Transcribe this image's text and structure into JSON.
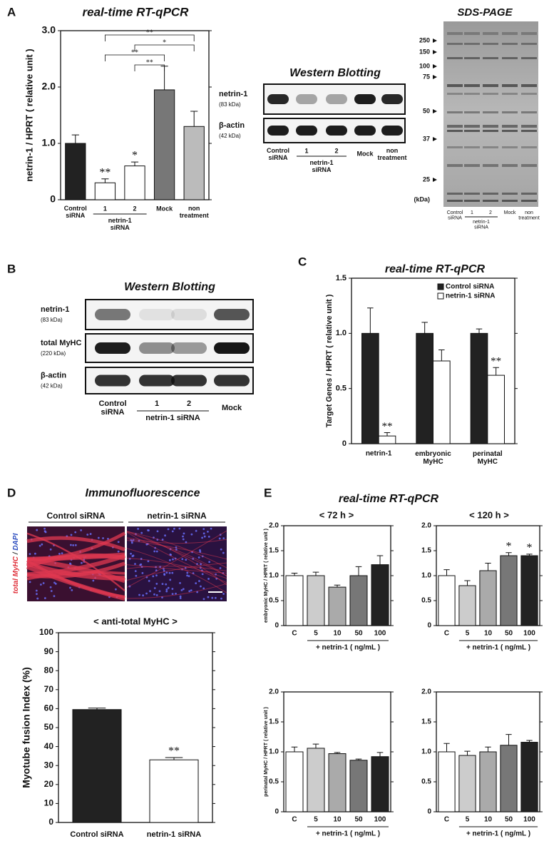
{
  "panels": [
    "A",
    "B",
    "C",
    "D",
    "E"
  ],
  "western_a": {
    "title": "Western Blotting",
    "rows": [
      {
        "name": "netrin-1",
        "size": "(83 kDa)"
      },
      {
        "name": "β-actin",
        "size": "(42 kDa)"
      }
    ],
    "lanes": [
      "Control\nsiRNA",
      "1",
      "2",
      "Mock",
      "non\ntreatment"
    ],
    "group": {
      "label": "netrin-1\nsiRNA",
      "from": 1,
      "to": 2
    }
  },
  "sds_page": {
    "title": "SDS-PAGE",
    "markers": [
      250,
      150,
      100,
      75,
      50,
      37,
      25
    ],
    "unit": "(kDa)",
    "lanes": [
      "Control\nsiRNA",
      "1",
      "2",
      "Mock",
      "non\ntreatment"
    ],
    "group": {
      "label": "netrin-1\nsiRNA",
      "from": 1,
      "to": 2
    }
  },
  "western_b": {
    "title": "Western Blotting",
    "rows": [
      {
        "name": "netrin-1",
        "size": "(83 kDa)"
      },
      {
        "name": "total MyHC",
        "size": "(220 kDa)"
      },
      {
        "name": "β-actin",
        "size": "(42 kDa)"
      }
    ],
    "lanes": [
      "Control\nsiRNA",
      "1",
      "2",
      "Mock"
    ],
    "group": {
      "label": "netrin-1 siRNA",
      "from": 1,
      "to": 2
    }
  },
  "immunofluorescence": {
    "title": "Immunofluorescence",
    "images": [
      "Control siRNA",
      "netrin-1 siRNA"
    ],
    "stains": [
      {
        "text": "total MyHC",
        "color": "#e0303a"
      },
      {
        "text": " / ",
        "color": "#333333"
      },
      {
        "text": "DAPI",
        "color": "#3050c0"
      }
    ]
  },
  "panel_e": {
    "title": "real-time RT-qPCR",
    "columns": [
      "< 72 h >",
      "< 120 h >"
    ]
  },
  "chart_data": [
    {
      "type": "bar",
      "title": "real-time RT-qPCR",
      "y_label": "netrin-1 / HPRT ( relative unit )",
      "categories": [
        "Control\nsiRNA",
        "1",
        "2",
        "Mock",
        "non\ntreatment"
      ],
      "values": [
        1.0,
        0.3,
        0.6,
        1.95,
        1.3
      ],
      "errors": [
        0.15,
        0.07,
        0.07,
        0.42,
        0.27
      ],
      "colors": [
        "#222222",
        "#ffffff",
        "#ffffff",
        "#777777",
        "#bbbbbb"
      ],
      "significance": [
        null,
        "**",
        "*",
        null,
        null
      ],
      "group": {
        "label": "netrin-1\nsiRNA",
        "from": 1,
        "to": 2
      },
      "brackets": [
        {
          "from": 1,
          "to": 4,
          "label": "**"
        },
        {
          "from": 2,
          "to": 4,
          "label": "*"
        },
        {
          "from": 1,
          "to": 3,
          "label": "**"
        },
        {
          "from": 2,
          "to": 3,
          "label": "**"
        }
      ],
      "ylim": [
        0,
        3
      ],
      "yticks": [
        0,
        {
          "value": 1,
          "label": "1.0"
        },
        {
          "value": 2,
          "label": "2.0"
        },
        {
          "value": 3,
          "label": "3.0"
        }
      ]
    },
    {
      "type": "bar",
      "title": "real-time RT-qPCR",
      "y_label": "Target Genes / HPRT ( relative unit )",
      "categories": [
        "netrin-1",
        "embryonic\nMyHC",
        "perinatal\nMyHC"
      ],
      "series": [
        {
          "name": "Control siRNA",
          "color": "#222222",
          "values": [
            1.0,
            1.0,
            1.0
          ],
          "errors": [
            0.23,
            0.1,
            0.04
          ]
        },
        {
          "name": "netrin-1 siRNA",
          "color": "#ffffff",
          "values": [
            0.07,
            0.75,
            0.62
          ],
          "errors": [
            0.03,
            0.1,
            0.07
          ],
          "significance": [
            "**",
            null,
            "**"
          ]
        }
      ],
      "legend": "top-right",
      "ylim": [
        0,
        1.5
      ],
      "yticks": [
        0,
        0.5,
        {
          "value": 1,
          "label": "1.0"
        },
        1.5
      ]
    },
    {
      "type": "bar",
      "title": "< anti-total MyHC >",
      "y_label": "Myotube fusion Index (%)",
      "categories": [
        "Control siRNA",
        "netrin-1 siRNA"
      ],
      "values": [
        59.5,
        33
      ],
      "errors": [
        0.8,
        1.2
      ],
      "colors": [
        "#222222",
        "#ffffff"
      ],
      "significance": [
        null,
        "**"
      ],
      "ylim": [
        0,
        100
      ],
      "yticks": [
        0,
        10,
        20,
        30,
        40,
        50,
        60,
        70,
        80,
        90,
        100
      ]
    },
    {
      "type": "bar",
      "y_label": "embryonic MyHC / HPRT ( relative unit )",
      "categories": [
        "C",
        "5",
        "10",
        "50",
        "100"
      ],
      "values": [
        1.0,
        1.0,
        0.77,
        1.0,
        1.22
      ],
      "errors": [
        0.05,
        0.07,
        0.04,
        0.18,
        0.18
      ],
      "colors": [
        "#ffffff",
        "#cccccc",
        "#aaaaaa",
        "#777777",
        "#222222"
      ],
      "group": {
        "label": "+ netrin-1 ( ng/mL )",
        "from": 1,
        "to": 4
      },
      "ylim": [
        0,
        2
      ],
      "yticks": [
        0,
        0.5,
        {
          "value": 1,
          "label": "1.0"
        },
        1.5,
        {
          "value": 2,
          "label": "2.0"
        }
      ]
    },
    {
      "type": "bar",
      "categories": [
        "C",
        "5",
        "10",
        "50",
        "100"
      ],
      "values": [
        1.0,
        0.8,
        1.1,
        1.4,
        1.4
      ],
      "errors": [
        0.12,
        0.1,
        0.15,
        0.06,
        0.03
      ],
      "colors": [
        "#ffffff",
        "#cccccc",
        "#aaaaaa",
        "#777777",
        "#222222"
      ],
      "significance": [
        null,
        null,
        null,
        "*",
        "*"
      ],
      "group": {
        "label": "+ netrin-1 ( ng/mL )",
        "from": 1,
        "to": 4
      },
      "ylim": [
        0,
        2
      ],
      "yticks": [
        0,
        0.5,
        {
          "value": 1,
          "label": "1.0"
        },
        1.5,
        {
          "value": 2,
          "label": "2.0"
        }
      ]
    },
    {
      "type": "bar",
      "y_label": "perinatal MyHC / HPRT ( relative unit )",
      "categories": [
        "C",
        "5",
        "10",
        "50",
        "100"
      ],
      "values": [
        1.0,
        1.06,
        0.97,
        0.86,
        0.92
      ],
      "errors": [
        0.08,
        0.07,
        0.02,
        0.02,
        0.07
      ],
      "colors": [
        "#ffffff",
        "#cccccc",
        "#aaaaaa",
        "#777777",
        "#222222"
      ],
      "group": {
        "label": "+ netrin-1 ( ng/mL )",
        "from": 1,
        "to": 4
      },
      "ylim": [
        0,
        2
      ],
      "yticks": [
        0,
        0.5,
        {
          "value": 1,
          "label": "1.0"
        },
        1.5,
        {
          "value": 2,
          "label": "2.0"
        }
      ]
    },
    {
      "type": "bar",
      "categories": [
        "C",
        "5",
        "10",
        "50",
        "100"
      ],
      "values": [
        1.0,
        0.94,
        1.0,
        1.11,
        1.16
      ],
      "errors": [
        0.14,
        0.07,
        0.08,
        0.18,
        0.03
      ],
      "colors": [
        "#ffffff",
        "#cccccc",
        "#aaaaaa",
        "#777777",
        "#222222"
      ],
      "group": {
        "label": "+ netrin-1 ( ng/mL )",
        "from": 1,
        "to": 4
      },
      "ylim": [
        0,
        2
      ],
      "yticks": [
        0,
        0.5,
        {
          "value": 1,
          "label": "1.0"
        },
        1.5,
        {
          "value": 2,
          "label": "2.0"
        }
      ]
    }
  ]
}
